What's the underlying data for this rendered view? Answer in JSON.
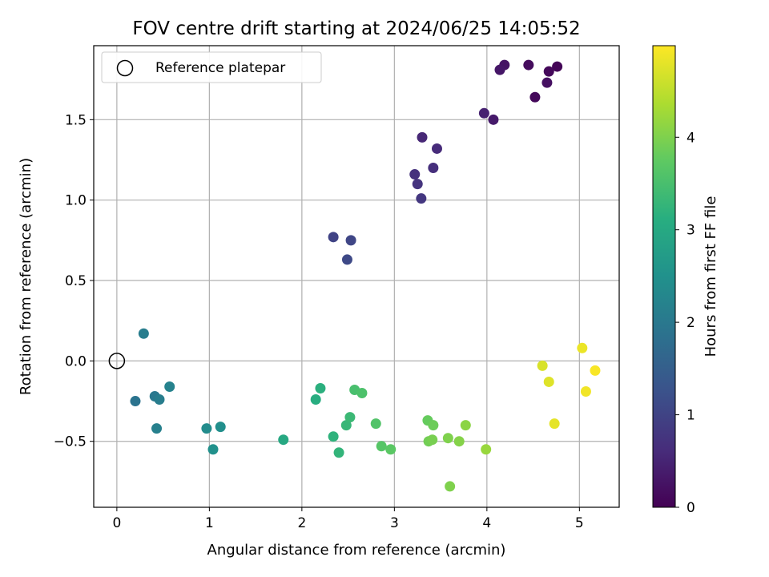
{
  "chart_data": {
    "type": "scatter",
    "title": "FOV centre drift starting at 2024/06/25 14:05:52",
    "xlabel": "Angular distance from reference (arcmin)",
    "ylabel": "Rotation from reference (arcmin)",
    "xlim": [
      -0.25,
      5.43
    ],
    "ylim": [
      -0.91,
      1.96
    ],
    "xticks": [
      0,
      1,
      2,
      3,
      4,
      5
    ],
    "xtick_labels": [
      "0",
      "1",
      "2",
      "3",
      "4",
      "5"
    ],
    "yticks": [
      -0.5,
      0.0,
      0.5,
      1.0,
      1.5
    ],
    "ytick_labels": [
      "−0.5",
      "0.0",
      "0.5",
      "1.0",
      "1.5"
    ],
    "grid": true,
    "legend": {
      "position": "top-left",
      "label": "Reference platepar"
    },
    "colorbar": {
      "label": "Hours from first FF file",
      "range": [
        0,
        4.99
      ],
      "ticks": [
        0,
        1,
        2,
        3,
        4
      ],
      "tick_labels": [
        "0",
        "1",
        "2",
        "3",
        "4"
      ],
      "colormap": "viridis"
    },
    "reference_point": {
      "x": 0.0,
      "y": 0.0
    },
    "points": [
      {
        "x": 4.76,
        "y": 1.83,
        "hours": 0.05
      },
      {
        "x": 4.67,
        "y": 1.8,
        "hours": 0.1
      },
      {
        "x": 4.45,
        "y": 1.84,
        "hours": 0.15
      },
      {
        "x": 4.52,
        "y": 1.64,
        "hours": 0.1
      },
      {
        "x": 4.65,
        "y": 1.73,
        "hours": 0.2
      },
      {
        "x": 4.19,
        "y": 1.84,
        "hours": 0.25
      },
      {
        "x": 4.14,
        "y": 1.81,
        "hours": 0.3
      },
      {
        "x": 4.07,
        "y": 1.5,
        "hours": 0.35
      },
      {
        "x": 3.97,
        "y": 1.54,
        "hours": 0.45
      },
      {
        "x": 3.3,
        "y": 1.39,
        "hours": 0.55
      },
      {
        "x": 3.46,
        "y": 1.32,
        "hours": 0.6
      },
      {
        "x": 3.42,
        "y": 1.2,
        "hours": 0.65
      },
      {
        "x": 3.22,
        "y": 1.16,
        "hours": 0.7
      },
      {
        "x": 3.25,
        "y": 1.1,
        "hours": 0.75
      },
      {
        "x": 3.29,
        "y": 1.01,
        "hours": 0.8
      },
      {
        "x": 2.34,
        "y": 0.77,
        "hours": 1.0
      },
      {
        "x": 2.53,
        "y": 0.75,
        "hours": 1.05
      },
      {
        "x": 2.49,
        "y": 0.63,
        "hours": 1.1
      },
      {
        "x": 0.29,
        "y": 0.17,
        "hours": 2.1
      },
      {
        "x": 0.2,
        "y": -0.25,
        "hours": 1.9
      },
      {
        "x": 0.41,
        "y": -0.22,
        "hours": 2.0
      },
      {
        "x": 0.46,
        "y": -0.24,
        "hours": 2.1
      },
      {
        "x": 0.57,
        "y": -0.16,
        "hours": 2.2
      },
      {
        "x": 0.43,
        "y": -0.42,
        "hours": 2.15
      },
      {
        "x": 0.97,
        "y": -0.42,
        "hours": 2.4
      },
      {
        "x": 1.12,
        "y": -0.41,
        "hours": 2.45
      },
      {
        "x": 1.04,
        "y": -0.55,
        "hours": 2.5
      },
      {
        "x": 1.8,
        "y": -0.49,
        "hours": 3.0
      },
      {
        "x": 2.15,
        "y": -0.24,
        "hours": 3.1
      },
      {
        "x": 2.2,
        "y": -0.17,
        "hours": 3.15
      },
      {
        "x": 2.34,
        "y": -0.47,
        "hours": 3.2
      },
      {
        "x": 2.4,
        "y": -0.57,
        "hours": 3.25
      },
      {
        "x": 2.48,
        "y": -0.4,
        "hours": 3.3
      },
      {
        "x": 2.52,
        "y": -0.35,
        "hours": 3.35
      },
      {
        "x": 2.57,
        "y": -0.18,
        "hours": 3.5
      },
      {
        "x": 2.65,
        "y": -0.2,
        "hours": 3.55
      },
      {
        "x": 2.8,
        "y": -0.39,
        "hours": 3.6
      },
      {
        "x": 2.86,
        "y": -0.53,
        "hours": 3.65
      },
      {
        "x": 2.96,
        "y": -0.55,
        "hours": 3.7
      },
      {
        "x": 3.36,
        "y": -0.37,
        "hours": 3.8
      },
      {
        "x": 3.42,
        "y": -0.4,
        "hours": 3.85
      },
      {
        "x": 3.37,
        "y": -0.5,
        "hours": 3.9
      },
      {
        "x": 3.41,
        "y": -0.49,
        "hours": 3.95
      },
      {
        "x": 3.58,
        "y": -0.48,
        "hours": 4.0
      },
      {
        "x": 3.7,
        "y": -0.5,
        "hours": 4.05
      },
      {
        "x": 3.77,
        "y": -0.4,
        "hours": 4.1
      },
      {
        "x": 3.6,
        "y": -0.78,
        "hours": 4.0
      },
      {
        "x": 3.99,
        "y": -0.55,
        "hours": 4.2
      },
      {
        "x": 4.6,
        "y": -0.03,
        "hours": 4.7
      },
      {
        "x": 4.67,
        "y": -0.13,
        "hours": 4.75
      },
      {
        "x": 4.73,
        "y": -0.39,
        "hours": 4.8
      },
      {
        "x": 5.03,
        "y": 0.08,
        "hours": 4.85
      },
      {
        "x": 5.07,
        "y": -0.19,
        "hours": 4.9
      },
      {
        "x": 5.17,
        "y": -0.06,
        "hours": 4.95
      }
    ]
  }
}
